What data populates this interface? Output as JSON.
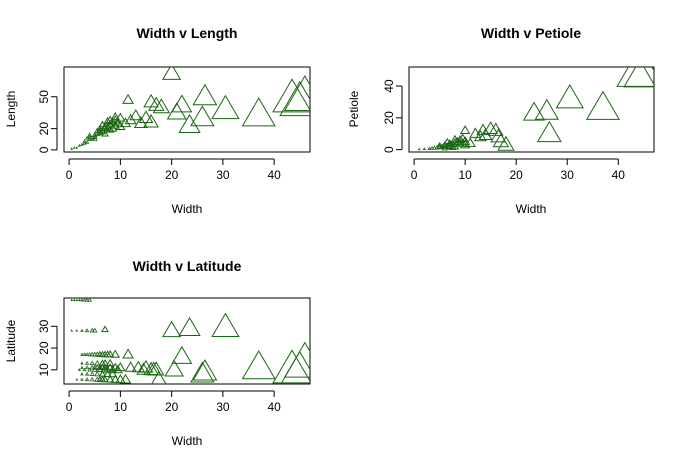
{
  "chart_data": [
    {
      "type": "scatter",
      "title": "Width v Length",
      "xlabel": "Width",
      "ylabel": "Length",
      "xlim": [
        -1,
        47
      ],
      "ylim": [
        -2,
        78
      ],
      "xticks": [
        0,
        10,
        20,
        30,
        40
      ],
      "yticks": [
        0,
        20,
        50
      ],
      "marker": "triangle",
      "marker_size_encodes": "Width",
      "color": "#1a6612",
      "points": [
        [
          0.5,
          1
        ],
        [
          1,
          2
        ],
        [
          1.5,
          2
        ],
        [
          2,
          4
        ],
        [
          2.5,
          5
        ],
        [
          3,
          6
        ],
        [
          3,
          8
        ],
        [
          3.5,
          7
        ],
        [
          4,
          10
        ],
        [
          4,
          12
        ],
        [
          4.5,
          11
        ],
        [
          5,
          12
        ],
        [
          5,
          14
        ],
        [
          5.5,
          15
        ],
        [
          6,
          16
        ],
        [
          6,
          18
        ],
        [
          6.5,
          17
        ],
        [
          7,
          20
        ],
        [
          7,
          22
        ],
        [
          7.5,
          21
        ],
        [
          8,
          24
        ],
        [
          8,
          19
        ],
        [
          8.5,
          26
        ],
        [
          9,
          23
        ],
        [
          9,
          28
        ],
        [
          9.5,
          25
        ],
        [
          10,
          30
        ],
        [
          4,
          14
        ],
        [
          5,
          10
        ],
        [
          6,
          20
        ],
        [
          7,
          15
        ],
        [
          8,
          28
        ],
        [
          9,
          31
        ],
        [
          10,
          22
        ],
        [
          3.5,
          11
        ],
        [
          5.5,
          18
        ],
        [
          6.5,
          24
        ],
        [
          7.5,
          27
        ],
        [
          8.5,
          20
        ],
        [
          11,
          25
        ],
        [
          11.5,
          47
        ],
        [
          12,
          28
        ],
        [
          13,
          32
        ],
        [
          14,
          25
        ],
        [
          15,
          30
        ],
        [
          16,
          26
        ],
        [
          16,
          45
        ],
        [
          17,
          42
        ],
        [
          18,
          40
        ],
        [
          20,
          72
        ],
        [
          21,
          35
        ],
        [
          22,
          42
        ],
        [
          23.5,
          23
        ],
        [
          26,
          30
        ],
        [
          26.5,
          50
        ],
        [
          30.5,
          38
        ],
        [
          37,
          33
        ],
        [
          43.5,
          48
        ],
        [
          46,
          50
        ],
        [
          45,
          45
        ]
      ]
    },
    {
      "type": "scatter",
      "title": "Width v Petiole",
      "xlabel": "Width",
      "ylabel": "Petiole",
      "xlim": [
        -1,
        47
      ],
      "ylim": [
        -1.5,
        52
      ],
      "xticks": [
        0,
        10,
        20,
        30,
        40
      ],
      "yticks": [
        0,
        20,
        40
      ],
      "marker": "triangle",
      "marker_size_encodes": "Width",
      "color": "#1a6612",
      "points": [
        [
          1,
          0.2
        ],
        [
          2,
          0.4
        ],
        [
          3,
          0.6
        ],
        [
          3.5,
          0.8
        ],
        [
          4,
          1
        ],
        [
          4.5,
          1.2
        ],
        [
          5,
          1.5
        ],
        [
          5,
          2
        ],
        [
          5.5,
          1.8
        ],
        [
          6,
          2.5
        ],
        [
          6,
          3
        ],
        [
          6.5,
          2.2
        ],
        [
          7,
          3.5
        ],
        [
          7,
          4
        ],
        [
          7.5,
          3
        ],
        [
          8,
          4.5
        ],
        [
          8,
          2
        ],
        [
          8.5,
          5
        ],
        [
          9,
          3.8
        ],
        [
          9,
          6
        ],
        [
          9.5,
          4
        ],
        [
          10,
          5
        ],
        [
          10,
          3
        ],
        [
          6,
          1
        ],
        [
          7,
          2
        ],
        [
          8,
          6.5
        ],
        [
          5,
          3
        ],
        [
          6.5,
          5
        ],
        [
          7.5,
          1.5
        ],
        [
          9.5,
          7
        ],
        [
          10,
          12
        ],
        [
          11,
          4
        ],
        [
          12,
          10
        ],
        [
          13,
          8
        ],
        [
          13.5,
          12
        ],
        [
          14,
          9
        ],
        [
          15,
          13
        ],
        [
          16,
          12
        ],
        [
          16.5,
          8
        ],
        [
          17,
          5
        ],
        [
          18,
          3
        ],
        [
          23.5,
          23
        ],
        [
          26,
          24
        ],
        [
          26.5,
          10
        ],
        [
          30.5,
          32
        ],
        [
          37,
          26
        ],
        [
          43.5,
          48
        ],
        [
          45,
          48
        ]
      ]
    },
    {
      "type": "scatter",
      "title": "Width v Latitude",
      "xlabel": "Width",
      "ylabel": "Latitude",
      "xlim": [
        -1,
        47
      ],
      "ylim": [
        3.5,
        43
      ],
      "xticks": [
        0,
        10,
        20,
        30,
        40
      ],
      "yticks": [
        10,
        20,
        30
      ],
      "marker": "triangle",
      "marker_size_encodes": "Width",
      "color": "#1a6612",
      "points": [
        [
          0.5,
          42
        ],
        [
          1,
          42
        ],
        [
          1.5,
          42
        ],
        [
          2,
          42
        ],
        [
          2.5,
          42
        ],
        [
          3,
          42
        ],
        [
          3.5,
          42
        ],
        [
          4,
          42
        ],
        [
          0.5,
          28
        ],
        [
          1.5,
          28
        ],
        [
          2.5,
          28
        ],
        [
          3.5,
          28
        ],
        [
          4.5,
          28
        ],
        [
          5,
          28
        ],
        [
          7,
          28.5
        ],
        [
          2.5,
          17
        ],
        [
          3,
          17
        ],
        [
          3.5,
          17
        ],
        [
          4,
          17
        ],
        [
          4.5,
          17
        ],
        [
          5,
          17
        ],
        [
          5.5,
          17
        ],
        [
          6,
          17
        ],
        [
          6.5,
          17
        ],
        [
          7,
          17
        ],
        [
          7.5,
          17
        ],
        [
          8,
          17
        ],
        [
          9,
          17
        ],
        [
          11.5,
          17
        ],
        [
          2.5,
          13
        ],
        [
          3.5,
          13
        ],
        [
          4.5,
          13
        ],
        [
          5.5,
          13
        ],
        [
          6.5,
          13
        ],
        [
          7,
          13
        ],
        [
          8,
          13
        ],
        [
          2.5,
          11
        ],
        [
          3.5,
          11
        ],
        [
          4.5,
          11
        ],
        [
          5,
          11
        ],
        [
          5.5,
          11
        ],
        [
          6,
          11
        ],
        [
          6.5,
          11
        ],
        [
          7,
          11
        ],
        [
          8,
          11
        ],
        [
          9,
          11
        ],
        [
          10,
          11
        ],
        [
          12,
          11
        ],
        [
          2,
          10
        ],
        [
          3,
          10
        ],
        [
          4,
          10
        ],
        [
          5,
          10
        ],
        [
          6,
          10
        ],
        [
          7,
          10
        ],
        [
          7.5,
          10
        ],
        [
          8.5,
          10
        ],
        [
          9.5,
          10
        ],
        [
          2.5,
          8
        ],
        [
          3.5,
          8
        ],
        [
          4.5,
          8
        ],
        [
          5.5,
          8
        ],
        [
          6.5,
          8
        ],
        [
          7.5,
          8
        ],
        [
          8.5,
          8
        ],
        [
          1.5,
          5.5
        ],
        [
          2.5,
          5.5
        ],
        [
          3.5,
          5.5
        ],
        [
          4.5,
          5.5
        ],
        [
          5.5,
          5.5
        ],
        [
          6,
          5.5
        ],
        [
          6.5,
          5.5
        ],
        [
          7,
          5.5
        ],
        [
          8,
          5.5
        ],
        [
          9,
          5.5
        ],
        [
          10,
          5.5
        ],
        [
          11,
          5.5
        ],
        [
          13.5,
          11
        ],
        [
          14.5,
          10
        ],
        [
          15,
          11
        ],
        [
          16,
          10
        ],
        [
          16.5,
          10
        ],
        [
          17,
          10
        ],
        [
          17.5,
          5.5
        ],
        [
          20,
          28
        ],
        [
          20.5,
          10
        ],
        [
          22,
          16
        ],
        [
          23.5,
          29
        ],
        [
          26,
          8
        ],
        [
          26.5,
          9
        ],
        [
          30.5,
          29.5
        ],
        [
          37,
          11
        ],
        [
          43.5,
          10
        ],
        [
          46,
          13
        ],
        [
          45,
          9
        ]
      ]
    }
  ]
}
